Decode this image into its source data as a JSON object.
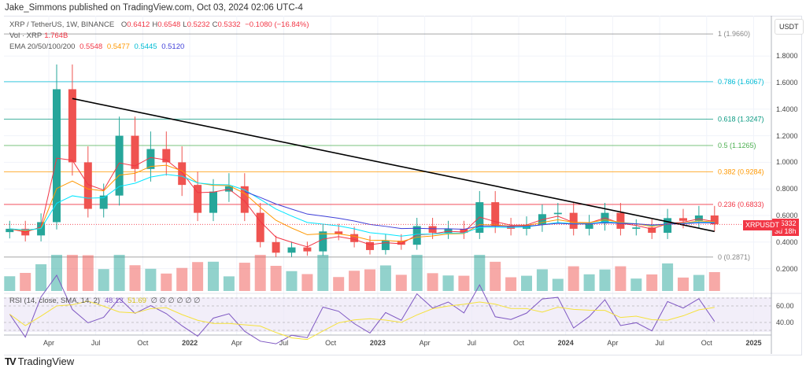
{
  "header": {
    "published": "Jake_Simmons published on TradingView.com, Oct 03, 2024 02:06 UTC-4"
  },
  "legend": {
    "symbol": "XRP / TetherUS, 1W, BINANCE",
    "ohlc": [
      {
        "k": "O",
        "v": "0.6412"
      },
      {
        "k": "H",
        "v": "0.6548"
      },
      {
        "k": "L",
        "v": "0.5232"
      },
      {
        "k": "C",
        "v": "0.5332"
      }
    ],
    "change": "−0.1080 (−16.84%)",
    "vol_label": "Vol · XRP",
    "vol_value": "1.764B",
    "ema_label": "EMA 20/50/100/200",
    "ema_values": [
      "0.5548",
      "0.5477",
      "0.5445",
      "0.5120"
    ],
    "rsi_label": "RSI (14, close, SMA, 14, 2)",
    "rsi_values": [
      "48.13",
      "51.69"
    ],
    "rsi_na": "∅ ∅ ∅ ∅ ∅ ∅"
  },
  "colors": {
    "up": "#26a69a",
    "down": "#ef5350",
    "ema20": "#f23645",
    "ema50": "#ff9800",
    "ema100": "#00e5ff",
    "ema200": "#3f3fd8",
    "rsi": "#7e57c2",
    "rsi_ma": "#f5e13b",
    "trend": "#000000"
  },
  "price_axis": {
    "currency": "USDT",
    "ticks": [
      "1.8000",
      "1.6000",
      "1.4000",
      "1.2000",
      "1.0000",
      "0.8000",
      "0.6000",
      "0.4000",
      "0.2000"
    ],
    "rsi_ticks": [
      "60.00",
      "40.00"
    ]
  },
  "last_price": {
    "symbol": "XRPUSDT",
    "price": "0.5332",
    "countdown": "3d 18h"
  },
  "time_axis": [
    "Apr",
    "Jul",
    "Oct",
    "2022",
    "Apr",
    "Jul",
    "Oct",
    "2023",
    "Apr",
    "Jul",
    "Oct",
    "2024",
    "Apr",
    "Jul",
    "Oct",
    "2025"
  ],
  "footer": {
    "brand": "TradingView"
  },
  "chart_data": {
    "type": "candlestick",
    "interval": "1W",
    "x": [
      "2021-01",
      "2021-02",
      "2021-03",
      "2021-04",
      "2021-05",
      "2021-06",
      "2021-07",
      "2021-08",
      "2021-09",
      "2021-10",
      "2021-11",
      "2021-12",
      "2022-01",
      "2022-02",
      "2022-03",
      "2022-04",
      "2022-05",
      "2022-06",
      "2022-07",
      "2022-08",
      "2022-09",
      "2022-10",
      "2022-11",
      "2022-12",
      "2023-01",
      "2023-02",
      "2023-03",
      "2023-04",
      "2023-05",
      "2023-06",
      "2023-07",
      "2023-08",
      "2023-09",
      "2023-10",
      "2023-11",
      "2023-12",
      "2024-01",
      "2024-02",
      "2024-03",
      "2024-04",
      "2024-05",
      "2024-06",
      "2024-07",
      "2024-08",
      "2024-09",
      "2024-10"
    ],
    "close": [
      0.5,
      0.45,
      0.55,
      1.55,
      1.0,
      0.65,
      0.75,
      1.2,
      0.95,
      1.1,
      1.0,
      0.83,
      0.62,
      0.78,
      0.82,
      0.62,
      0.4,
      0.32,
      0.36,
      0.33,
      0.48,
      0.46,
      0.4,
      0.34,
      0.41,
      0.38,
      0.52,
      0.47,
      0.5,
      0.47,
      0.7,
      0.52,
      0.5,
      0.53,
      0.61,
      0.62,
      0.5,
      0.54,
      0.62,
      0.5,
      0.51,
      0.47,
      0.58,
      0.56,
      0.6,
      0.5332
    ],
    "ylim": [
      0.0,
      2.0
    ],
    "fib_levels": [
      {
        "label": "1 (1.9660)",
        "value": 1.966,
        "color": "#888888"
      },
      {
        "label": "0.786 (1.6067)",
        "value": 1.6067,
        "color": "#00bcd4"
      },
      {
        "label": "0.618 (1.3247)",
        "value": 1.3247,
        "color": "#089981"
      },
      {
        "label": "0.5 (1.1265)",
        "value": 1.1265,
        "color": "#4caf50"
      },
      {
        "label": "0.382 (0.9284)",
        "value": 0.9284,
        "color": "#ff9800"
      },
      {
        "label": "0.236 (0.6833)",
        "value": 0.6833,
        "color": "#f23645"
      },
      {
        "label": "0 (0.2871)",
        "value": 0.2871,
        "color": "#888888"
      }
    ],
    "trendline": {
      "from": [
        "2021-05",
        1.48
      ],
      "to": [
        "2024-10",
        0.48
      ]
    }
  }
}
